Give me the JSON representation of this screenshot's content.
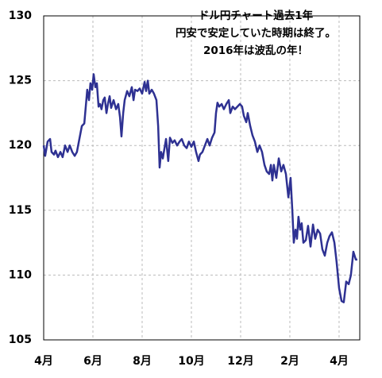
{
  "chart_data": {
    "type": "line",
    "annotation": [
      "ドル円チャート過去1年",
      "円安で安定していた時期は終了。",
      "2016年は波乱の年！"
    ],
    "x": [
      0,
      0.06,
      0.16,
      0.26,
      0.32,
      0.42,
      0.48,
      0.58,
      0.68,
      0.77,
      0.87,
      0.97,
      1.06,
      1.16,
      1.26,
      1.35,
      1.45,
      1.55,
      1.65,
      1.71,
      1.77,
      1.84,
      1.9,
      1.97,
      2.03,
      2.1,
      2.16,
      2.23,
      2.29,
      2.35,
      2.42,
      2.48,
      2.55,
      2.61,
      2.68,
      2.74,
      2.84,
      2.94,
      3.03,
      3.1,
      3.16,
      3.23,
      3.29,
      3.39,
      3.48,
      3.58,
      3.65,
      3.71,
      3.81,
      3.9,
      4.0,
      4.1,
      4.16,
      4.23,
      4.29,
      4.39,
      4.48,
      4.58,
      4.65,
      4.71,
      4.77,
      4.84,
      4.9,
      4.97,
      5.06,
      5.13,
      5.23,
      5.32,
      5.42,
      5.52,
      5.61,
      5.71,
      5.81,
      5.9,
      6.0,
      6.1,
      6.19,
      6.29,
      6.35,
      6.45,
      6.55,
      6.65,
      6.74,
      6.84,
      6.94,
      7.0,
      7.06,
      7.13,
      7.23,
      7.32,
      7.42,
      7.52,
      7.58,
      7.68,
      7.77,
      7.87,
      7.97,
      8.06,
      8.13,
      8.23,
      8.29,
      8.39,
      8.48,
      8.58,
      8.68,
      8.77,
      8.87,
      8.97,
      9.06,
      9.16,
      9.23,
      9.29,
      9.35,
      9.45,
      9.55,
      9.65,
      9.74,
      9.84,
      9.94,
      10.03,
      10.1,
      10.16,
      10.23,
      10.29,
      10.35,
      10.42,
      10.48,
      10.55,
      10.65,
      10.74,
      10.84,
      10.94,
      11.03,
      11.13,
      11.23,
      11.32,
      11.42,
      11.52,
      11.61,
      11.71,
      11.81,
      11.9,
      12.0,
      12.1,
      12.19,
      12.29,
      12.39,
      12.48,
      12.58,
      12.68,
      12.74
    ],
    "series": [
      {
        "color": "#2e3192",
        "values": [
          120,
          119.2,
          120.3,
          120.5,
          119.5,
          119.3,
          119.6,
          119.1,
          119.5,
          119.1,
          120,
          119.5,
          120,
          119.5,
          119.2,
          119.5,
          120.5,
          121.5,
          121.7,
          123,
          124.3,
          123.5,
          124.8,
          124.3,
          125.5,
          124.5,
          124.8,
          123,
          123.2,
          122.8,
          123.5,
          123.7,
          122.5,
          123.2,
          123.8,
          122.9,
          123.5,
          122.8,
          123.2,
          122.2,
          120.7,
          122.5,
          123.5,
          124.2,
          123.8,
          124.5,
          123.5,
          124.3,
          124.2,
          124.4,
          124.0,
          124.9,
          124.2,
          125.0,
          124.0,
          124.3,
          124.0,
          123.5,
          121.5,
          118.3,
          119.5,
          119.0,
          119.7,
          120.5,
          118.8,
          120.6,
          120.2,
          120.4,
          120.0,
          120.3,
          120.5,
          120.0,
          119.8,
          120.3,
          119.9,
          120.3,
          119.5,
          118.8,
          119.3,
          119.5,
          120.0,
          120.5,
          120.0,
          120.6,
          121.0,
          122.5,
          123.3,
          123.0,
          123.2,
          122.8,
          123.2,
          123.5,
          122.5,
          123.0,
          122.8,
          123.0,
          123.2,
          123.0,
          122.3,
          121.8,
          122.5,
          121.5,
          120.8,
          120.3,
          119.5,
          120.0,
          119.5,
          118.5,
          118.0,
          117.8,
          118.5,
          117.3,
          118.5,
          117.5,
          119.0,
          118.0,
          118.5,
          117.8,
          116.0,
          117.5,
          115.0,
          112.5,
          113.5,
          112.8,
          114.5,
          113.5,
          114.0,
          112.5,
          112.7,
          113.8,
          112.2,
          113.9,
          112.8,
          113.5,
          113.2,
          112.0,
          111.5,
          112.5,
          113.0,
          113.3,
          112.5,
          111.0,
          109.0,
          108.0,
          107.9,
          109.5,
          109.3,
          110.0,
          111.8,
          111.2,
          111.2
        ]
      }
    ],
    "xlim": [
      0,
      12.84
    ],
    "xticks": [
      {
        "value": 0,
        "label": "4月"
      },
      {
        "value": 2,
        "label": "6月"
      },
      {
        "value": 4,
        "label": "8月"
      },
      {
        "value": 6,
        "label": "10月"
      },
      {
        "value": 8,
        "label": "12月"
      },
      {
        "value": 10,
        "label": "2月"
      },
      {
        "value": 12,
        "label": "4月"
      }
    ],
    "ylim": [
      105,
      130
    ],
    "yticks": [
      105,
      110,
      115,
      120,
      125,
      130
    ],
    "grid": true
  }
}
